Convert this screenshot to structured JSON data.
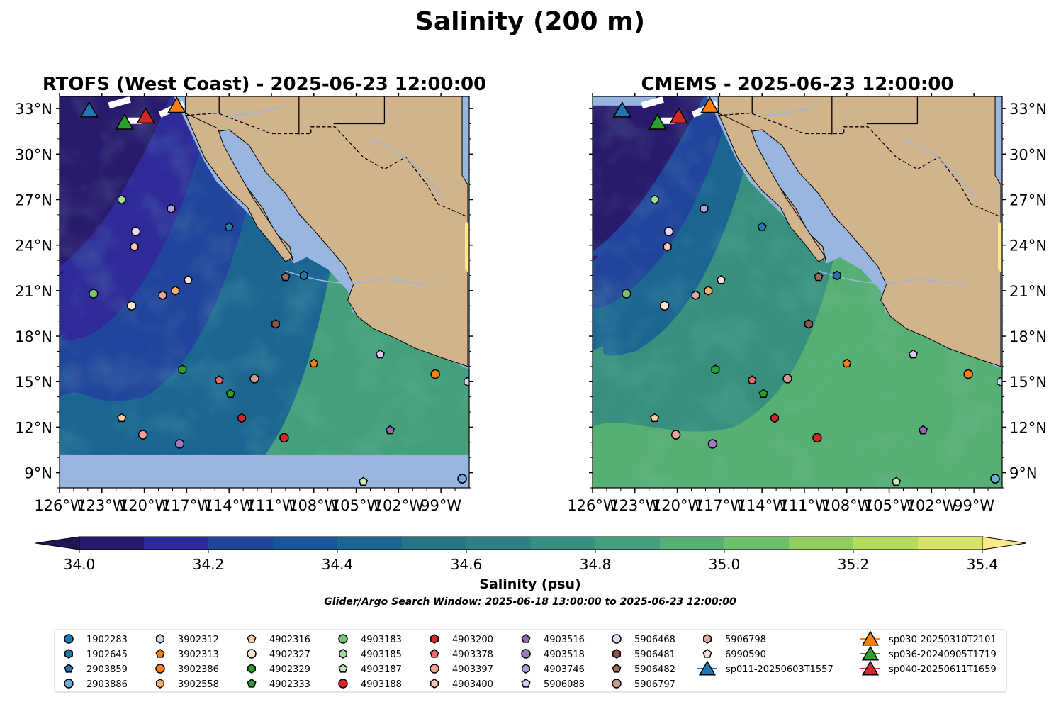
{
  "figure": {
    "title": "Salinity (200 m)",
    "subtitle": "Glider/Argo Search Window: 2025-06-18 13:00:00 to 2025-06-23 12:00:00"
  },
  "chart_data": [
    {
      "type": "map",
      "panel": "left",
      "title": "RTOFS (West Coast) - 2025-06-23 12:00:00",
      "x_ticks": [
        "126°W",
        "123°W",
        "120°W",
        "117°W",
        "114°W",
        "111°W",
        "108°W",
        "105°W",
        "102°W",
        "99°W"
      ],
      "x_tick_values": [
        -126,
        -123,
        -120,
        -117,
        -114,
        -111,
        -108,
        -105,
        -102,
        -99
      ],
      "y_ticks": [
        "33°N",
        "30°N",
        "27°N",
        "24°N",
        "21°N",
        "18°N",
        "15°N",
        "12°N",
        "9°N"
      ],
      "y_tick_values": [
        33,
        30,
        27,
        24,
        21,
        18,
        15,
        12,
        9
      ],
      "xlim": [
        -126,
        -97
      ],
      "ylim": [
        8,
        33.8
      ],
      "y_tick_side": "left"
    },
    {
      "type": "map",
      "panel": "right",
      "title": "CMEMS - 2025-06-23 12:00:00",
      "x_ticks": [
        "126°W",
        "123°W",
        "120°W",
        "117°W",
        "114°W",
        "111°W",
        "108°W",
        "105°W",
        "102°W",
        "99°W"
      ],
      "x_tick_values": [
        -126,
        -123,
        -120,
        -117,
        -114,
        -111,
        -108,
        -105,
        -102,
        -99
      ],
      "y_ticks": [
        "33°N",
        "30°N",
        "27°N",
        "24°N",
        "21°N",
        "18°N",
        "15°N",
        "12°N",
        "9°N"
      ],
      "y_tick_values": [
        33,
        30,
        27,
        24,
        21,
        18,
        15,
        12,
        9
      ],
      "xlim": [
        -126,
        -97
      ],
      "ylim": [
        8,
        33.8
      ],
      "y_tick_side": "right"
    },
    {
      "type": "colorbar",
      "label": "Salinity (psu)",
      "range": [
        34.0,
        35.4
      ],
      "step": 0.1,
      "tick_labels": [
        "34.0",
        "34.2",
        "34.4",
        "34.6",
        "34.8",
        "35.0",
        "35.2",
        "35.4"
      ],
      "tick_values": [
        34.0,
        34.2,
        34.4,
        34.6,
        34.8,
        35.0,
        35.2,
        35.4
      ],
      "colors": [
        "#2a1a6e",
        "#2e2a9a",
        "#21459c",
        "#18569c",
        "#1a6591",
        "#257487",
        "#2d8083",
        "#37907f",
        "#44a07a",
        "#56af73",
        "#6fc06a",
        "#8fcf5f",
        "#b5db5c",
        "#d6e46a"
      ],
      "under_color": "#231454",
      "over_color": "#fbe98a"
    }
  ],
  "platforms": [
    {
      "id": "1902283",
      "marker": "circle",
      "color": "#1f77b4",
      "lon": -97.5,
      "lat": 8.6
    },
    {
      "id": "1902645",
      "marker": "hexagon",
      "color": "#1f77b4",
      "lon": -108.7,
      "lat": 22.0
    },
    {
      "id": "2903859",
      "marker": "pentagon",
      "color": "#1f77b4",
      "lon": -114.0,
      "lat": 25.2
    },
    {
      "id": "2903886",
      "marker": "circle",
      "color": "#6baed6",
      "lon": -97.5,
      "lat": 8.6
    },
    {
      "id": "3902312",
      "marker": "hexagon",
      "color": "#c6dbef",
      "lon": -97.1,
      "lat": 15.0
    },
    {
      "id": "3902313",
      "marker": "pentagon",
      "color": "#ff7f0e",
      "lon": -108.0,
      "lat": 16.2
    },
    {
      "id": "3902386",
      "marker": "circle",
      "color": "#ff7f0e",
      "lon": -99.4,
      "lat": 15.5
    },
    {
      "id": "3902558",
      "marker": "hexagon",
      "color": "#fdae6b",
      "lon": -117.8,
      "lat": 21.0
    },
    {
      "id": "4902316",
      "marker": "pentagon",
      "color": "#fdd0a2",
      "lon": -121.6,
      "lat": 12.6
    },
    {
      "id": "4902327",
      "marker": "circle",
      "color": "#fee6ce",
      "lon": -120.9,
      "lat": 20.0
    },
    {
      "id": "4902329",
      "marker": "hexagon",
      "color": "#2ca02c",
      "lon": -117.3,
      "lat": 15.8
    },
    {
      "id": "4902333",
      "marker": "pentagon",
      "color": "#2ca02c",
      "lon": -113.9,
      "lat": 14.2
    },
    {
      "id": "4903183",
      "marker": "circle",
      "color": "#74c476",
      "lon": -123.6,
      "lat": 20.8
    },
    {
      "id": "4903185",
      "marker": "hexagon",
      "color": "#a1d99b",
      "lon": -121.6,
      "lat": 27.0
    },
    {
      "id": "4903187",
      "marker": "pentagon",
      "color": "#c7e9c0",
      "lon": -104.5,
      "lat": 8.4
    },
    {
      "id": "4903188",
      "marker": "circle",
      "color": "#d62728",
      "lon": -110.1,
      "lat": 11.3
    },
    {
      "id": "4903200",
      "marker": "hexagon",
      "color": "#d62728",
      "lon": -113.1,
      "lat": 12.6
    },
    {
      "id": "4903378",
      "marker": "pentagon",
      "color": "#f16a6a",
      "lon": -114.7,
      "lat": 15.1
    },
    {
      "id": "4903397",
      "marker": "circle",
      "color": "#f4a09c",
      "lon": -120.1,
      "lat": 11.5
    },
    {
      "id": "4903400",
      "marker": "hexagon",
      "color": "#fcc5c0",
      "lon": -120.7,
      "lat": 23.9
    },
    {
      "id": "4903516",
      "marker": "pentagon",
      "color": "#9467bd",
      "lon": -102.6,
      "lat": 11.8
    },
    {
      "id": "4903518",
      "marker": "circle",
      "color": "#9e79c4",
      "lon": -117.5,
      "lat": 10.9
    },
    {
      "id": "4903746",
      "marker": "hexagon",
      "color": "#b39ddb",
      "lon": -118.1,
      "lat": 26.4
    },
    {
      "id": "5906088",
      "marker": "pentagon",
      "color": "#dcc6f5",
      "lon": -103.3,
      "lat": 16.8
    },
    {
      "id": "5906468",
      "marker": "circle",
      "color": "#e9d5f5",
      "lon": -120.6,
      "lat": 24.9
    },
    {
      "id": "5906481",
      "marker": "hexagon",
      "color": "#8c564b",
      "lon": -110.7,
      "lat": 18.8
    },
    {
      "id": "5906482",
      "marker": "pentagon",
      "color": "#9c6b5e",
      "lon": -110.0,
      "lat": 21.9
    },
    {
      "id": "5906797",
      "marker": "circle",
      "color": "#c49c94",
      "lon": -112.2,
      "lat": 15.2
    },
    {
      "id": "5906798",
      "marker": "hexagon",
      "color": "#e0a8a0",
      "lon": -118.7,
      "lat": 20.7
    },
    {
      "id": "6990590",
      "marker": "pentagon",
      "color": "#fde0dd",
      "lon": -116.9,
      "lat": 21.7
    },
    {
      "id": "sp011-20250603T1557",
      "marker": "triangle",
      "color": "#1f77b4",
      "lon": -123.9,
      "lat": 32.9
    },
    {
      "id": "sp030-20250310T2101",
      "marker": "triangle",
      "color": "#ff7f0e",
      "lon": -117.7,
      "lat": 33.2
    },
    {
      "id": "sp036-20240905T1719",
      "marker": "triangle",
      "color": "#2ca02c",
      "lon": -121.4,
      "lat": 32.1
    },
    {
      "id": "sp040-20250611T1659",
      "marker": "triangle",
      "color": "#d62728",
      "lon": -119.9,
      "lat": 32.5
    }
  ],
  "legend": {
    "placement": "bottom",
    "columns": [
      [
        "1902283",
        "1902645",
        "2903859",
        "2903886"
      ],
      [
        "3902312",
        "3902313",
        "3902386",
        "3902558"
      ],
      [
        "4902316",
        "4902327",
        "4902329",
        "4902333"
      ],
      [
        "4903183",
        "4903185",
        "4903187",
        "4903188"
      ],
      [
        "4903200",
        "4903378",
        "4903397",
        "4903400"
      ],
      [
        "4903516",
        "4903518",
        "4903746",
        "5906088"
      ],
      [
        "5906468",
        "5906481",
        "5906482",
        "5906797"
      ],
      [
        "5906798",
        "6990590",
        "sp011-20250603T1557"
      ],
      [
        "sp030-20250310T2101",
        "sp036-20240905T1719",
        "sp040-20250611T1659"
      ]
    ]
  },
  "style": {
    "land": "#d2b48c",
    "shelf": "#98b6e0",
    "deep_water": "#2a1a6e",
    "background": "#ffffff"
  }
}
